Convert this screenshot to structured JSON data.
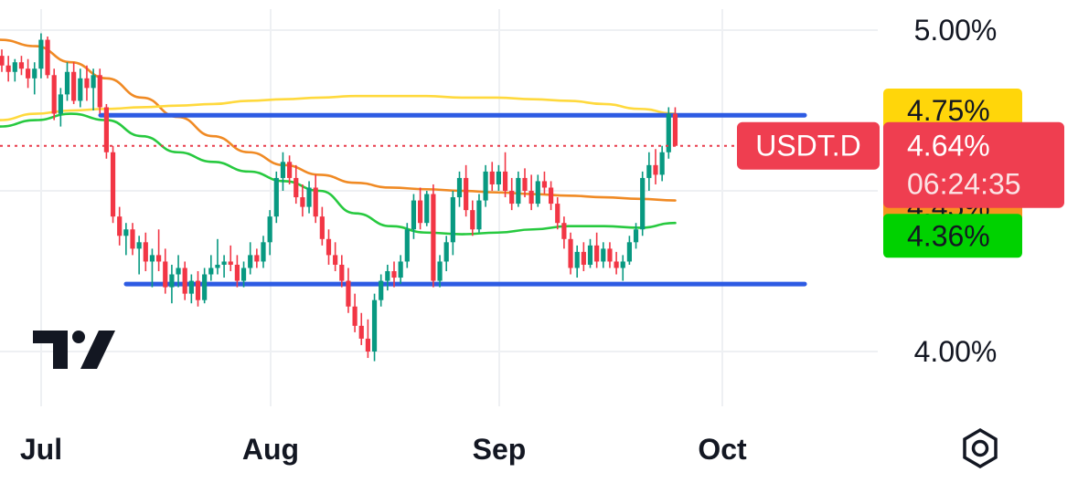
{
  "chart_data": {
    "type": "candlestick",
    "symbol": "USDT.D",
    "x_labels": [
      "Jul",
      "Aug",
      "Sep",
      "Oct"
    ],
    "y_ticks": [
      "5.00%",
      "4.00%"
    ],
    "ylim": [
      3.85,
      5.1
    ],
    "last_price": "4.64%",
    "countdown": "06:24:35",
    "ma_labels": [
      {
        "text": "4.75%",
        "color": "#ffd60a"
      },
      {
        "text": "4.45%",
        "color": "#f7931e"
      },
      {
        "text": "4.36%",
        "color": "#00d200"
      }
    ],
    "horizontal_levels": [
      4.735,
      4.21
    ],
    "candles": [
      [
        4.92,
        4.94,
        4.87,
        4.89
      ],
      [
        4.89,
        4.92,
        4.84,
        4.87
      ],
      [
        4.87,
        4.91,
        4.84,
        4.9
      ],
      [
        4.9,
        4.92,
        4.86,
        4.88
      ],
      [
        4.88,
        4.91,
        4.82,
        4.85
      ],
      [
        4.85,
        4.9,
        4.8,
        4.88
      ],
      [
        4.88,
        4.99,
        4.85,
        4.97
      ],
      [
        4.97,
        4.98,
        4.85,
        4.86
      ],
      [
        4.86,
        4.88,
        4.72,
        4.74
      ],
      [
        4.74,
        4.82,
        4.7,
        4.8
      ],
      [
        4.8,
        4.9,
        4.78,
        4.87
      ],
      [
        4.87,
        4.9,
        4.77,
        4.78
      ],
      [
        4.78,
        4.88,
        4.76,
        4.85
      ],
      [
        4.85,
        4.89,
        4.78,
        4.82
      ],
      [
        4.82,
        4.88,
        4.75,
        4.86
      ],
      [
        4.86,
        4.88,
        4.74,
        4.76
      ],
      [
        4.76,
        4.77,
        4.6,
        4.62
      ],
      [
        4.62,
        4.64,
        4.4,
        4.42
      ],
      [
        4.42,
        4.45,
        4.33,
        4.36
      ],
      [
        4.36,
        4.4,
        4.3,
        4.38
      ],
      [
        4.38,
        4.4,
        4.3,
        4.32
      ],
      [
        4.32,
        4.36,
        4.24,
        4.34
      ],
      [
        4.34,
        4.37,
        4.25,
        4.28
      ],
      [
        4.28,
        4.32,
        4.2,
        4.3
      ],
      [
        4.3,
        4.38,
        4.25,
        4.28
      ],
      [
        4.28,
        4.32,
        4.18,
        4.2
      ],
      [
        4.2,
        4.27,
        4.15,
        4.24
      ],
      [
        4.24,
        4.3,
        4.2,
        4.26
      ],
      [
        4.26,
        4.28,
        4.16,
        4.18
      ],
      [
        4.18,
        4.24,
        4.15,
        4.22
      ],
      [
        4.22,
        4.25,
        4.14,
        4.16
      ],
      [
        4.16,
        4.26,
        4.15,
        4.24
      ],
      [
        4.24,
        4.3,
        4.22,
        4.26
      ],
      [
        4.26,
        4.35,
        4.24,
        4.27
      ],
      [
        4.27,
        4.3,
        4.23,
        4.28
      ],
      [
        4.28,
        4.33,
        4.25,
        4.27
      ],
      [
        4.27,
        4.3,
        4.2,
        4.22
      ],
      [
        4.22,
        4.28,
        4.2,
        4.26
      ],
      [
        4.26,
        4.34,
        4.24,
        4.3
      ],
      [
        4.3,
        4.32,
        4.26,
        4.28
      ],
      [
        4.28,
        4.36,
        4.26,
        4.34
      ],
      [
        4.34,
        4.44,
        4.3,
        4.42
      ],
      [
        4.42,
        4.56,
        4.4,
        4.54
      ],
      [
        4.54,
        4.62,
        4.5,
        4.59
      ],
      [
        4.59,
        4.61,
        4.52,
        4.54
      ],
      [
        4.54,
        4.58,
        4.46,
        4.48
      ],
      [
        4.48,
        4.52,
        4.42,
        4.45
      ],
      [
        4.45,
        4.53,
        4.43,
        4.51
      ],
      [
        4.51,
        4.55,
        4.4,
        4.42
      ],
      [
        4.42,
        4.45,
        4.33,
        4.35
      ],
      [
        4.35,
        4.38,
        4.27,
        4.3
      ],
      [
        4.3,
        4.34,
        4.25,
        4.27
      ],
      [
        4.27,
        4.3,
        4.2,
        4.22
      ],
      [
        4.22,
        4.26,
        4.12,
        4.14
      ],
      [
        4.14,
        4.18,
        4.06,
        4.08
      ],
      [
        4.08,
        4.12,
        4.02,
        4.04
      ],
      [
        4.04,
        4.1,
        3.98,
        4.0
      ],
      [
        4.0,
        4.18,
        3.97,
        4.16
      ],
      [
        4.16,
        4.24,
        4.14,
        4.22
      ],
      [
        4.22,
        4.27,
        4.19,
        4.25
      ],
      [
        4.25,
        4.28,
        4.2,
        4.23
      ],
      [
        4.23,
        4.3,
        4.21,
        4.28
      ],
      [
        4.28,
        4.4,
        4.26,
        4.38
      ],
      [
        4.38,
        4.49,
        4.35,
        4.47
      ],
      [
        4.47,
        4.51,
        4.38,
        4.4
      ],
      [
        4.4,
        4.5,
        4.39,
        4.49
      ],
      [
        4.49,
        4.52,
        4.2,
        4.22
      ],
      [
        4.22,
        4.3,
        4.2,
        4.28
      ],
      [
        4.28,
        4.36,
        4.25,
        4.34
      ],
      [
        4.34,
        4.5,
        4.3,
        4.48
      ],
      [
        4.48,
        4.56,
        4.45,
        4.54
      ],
      [
        4.54,
        4.58,
        4.42,
        4.44
      ],
      [
        4.44,
        4.47,
        4.36,
        4.38
      ],
      [
        4.38,
        4.49,
        4.37,
        4.47
      ],
      [
        4.47,
        4.58,
        4.45,
        4.56
      ],
      [
        4.56,
        4.59,
        4.5,
        4.52
      ],
      [
        4.52,
        4.58,
        4.5,
        4.56
      ],
      [
        4.56,
        4.62,
        4.48,
        4.5
      ],
      [
        4.5,
        4.54,
        4.44,
        4.46
      ],
      [
        4.46,
        4.56,
        4.45,
        4.54
      ],
      [
        4.54,
        4.57,
        4.48,
        4.5
      ],
      [
        4.5,
        4.55,
        4.44,
        4.46
      ],
      [
        4.46,
        4.55,
        4.45,
        4.53
      ],
      [
        4.53,
        4.56,
        4.49,
        4.51
      ],
      [
        4.51,
        4.53,
        4.44,
        4.46
      ],
      [
        4.46,
        4.48,
        4.38,
        4.4
      ],
      [
        4.4,
        4.42,
        4.32,
        4.35
      ],
      [
        4.35,
        4.37,
        4.24,
        4.26
      ],
      [
        4.26,
        4.33,
        4.23,
        4.31
      ],
      [
        4.31,
        4.34,
        4.25,
        4.27
      ],
      [
        4.27,
        4.35,
        4.26,
        4.33
      ],
      [
        4.33,
        4.37,
        4.26,
        4.28
      ],
      [
        4.28,
        4.34,
        4.26,
        4.32
      ],
      [
        4.32,
        4.34,
        4.26,
        4.28
      ],
      [
        4.28,
        4.31,
        4.24,
        4.26
      ],
      [
        4.26,
        4.3,
        4.22,
        4.28
      ],
      [
        4.28,
        4.36,
        4.27,
        4.34
      ],
      [
        4.34,
        4.4,
        4.32,
        4.38
      ],
      [
        4.38,
        4.56,
        4.36,
        4.54
      ],
      [
        4.54,
        4.62,
        4.5,
        4.58
      ],
      [
        4.58,
        4.63,
        4.52,
        4.55
      ],
      [
        4.55,
        4.64,
        4.53,
        4.62
      ],
      [
        4.62,
        4.76,
        4.6,
        4.74
      ],
      [
        4.74,
        4.76,
        4.64,
        4.64
      ]
    ],
    "moving_averages": [
      {
        "color": "#f08a24",
        "values": [
          4.97,
          4.95,
          4.9,
          4.85,
          4.79,
          4.73,
          4.67,
          4.62,
          4.58,
          4.55,
          4.525,
          4.51,
          4.505,
          4.5,
          4.495,
          4.49,
          4.485,
          4.48,
          4.475,
          4.47
        ]
      },
      {
        "color": "#ffd93d",
        "values": [
          4.72,
          4.74,
          4.75,
          4.755,
          4.76,
          4.765,
          4.77,
          4.78,
          4.785,
          4.79,
          4.795,
          4.795,
          4.795,
          4.79,
          4.79,
          4.785,
          4.78,
          4.77,
          4.755,
          4.74
        ]
      },
      {
        "color": "#27c93f",
        "values": [
          4.7,
          4.72,
          4.74,
          4.72,
          4.67,
          4.62,
          4.59,
          4.56,
          4.53,
          4.5,
          4.43,
          4.39,
          4.37,
          4.365,
          4.37,
          4.38,
          4.39,
          4.39,
          4.385,
          4.4
        ]
      }
    ]
  }
}
